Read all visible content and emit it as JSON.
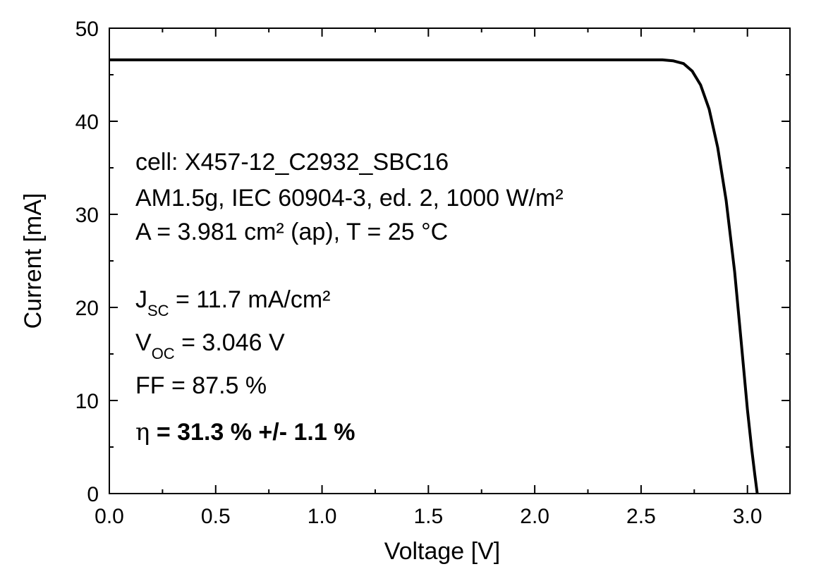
{
  "chart_data": {
    "type": "line",
    "xlabel": "Voltage [V]",
    "ylabel": "Current [mA]",
    "xlim": [
      0.0,
      3.2
    ],
    "ylim": [
      0,
      50
    ],
    "x_ticks": [
      "0.0",
      "0.5",
      "1.0",
      "1.5",
      "2.0",
      "2.5",
      "3.0"
    ],
    "y_ticks": [
      "0",
      "10",
      "20",
      "30",
      "40",
      "50"
    ],
    "grid": false,
    "series": [
      {
        "name": "",
        "color": "#000000",
        "points": [
          [
            0.0,
            46.6
          ],
          [
            0.5,
            46.6
          ],
          [
            1.0,
            46.6
          ],
          [
            1.5,
            46.6
          ],
          [
            2.0,
            46.6
          ],
          [
            2.3,
            46.6
          ],
          [
            2.5,
            46.6
          ],
          [
            2.6,
            46.6
          ],
          [
            2.65,
            46.5
          ],
          [
            2.7,
            46.2
          ],
          [
            2.74,
            45.4
          ],
          [
            2.78,
            43.9
          ],
          [
            2.82,
            41.3
          ],
          [
            2.86,
            37.2
          ],
          [
            2.9,
            31.5
          ],
          [
            2.94,
            23.8
          ],
          [
            2.97,
            16.5
          ],
          [
            3.0,
            9.0
          ],
          [
            3.02,
            4.8
          ],
          [
            3.035,
            2.0
          ],
          [
            3.046,
            0.0
          ]
        ]
      }
    ],
    "annotations": {
      "line1": "cell: X457-12_C2932_SBC16",
      "line2": "AM1.5g, IEC 60904-3, ed. 2, 1000 W/m²",
      "line3": "A = 3.981 cm² (ap), T = 25 °C",
      "jsc_main": "J",
      "jsc_sub": "SC",
      "jsc_rest": " = 11.7 mA/cm²",
      "voc_main": "V",
      "voc_sub": "OC",
      "voc_rest": " = 3.046 V",
      "ff": "FF = 87.5 %",
      "eta_symbol": "η",
      "eta_rest": " = 31.3 % +/- 1.1 %"
    }
  }
}
